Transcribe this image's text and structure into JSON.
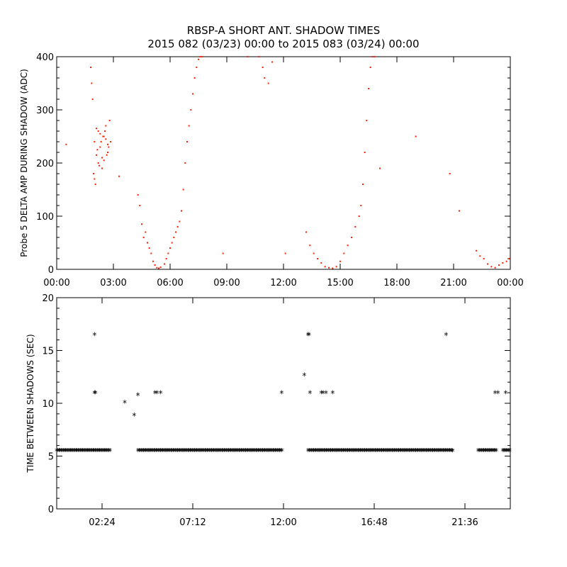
{
  "title_line1": "RBSP-A SHORT ANT. SHADOW TIMES",
  "title_line2": "2015 082 (03/23) 00:00 to 2015 083 (03/24) 00:00",
  "colors": {
    "top_points": "#ff2200",
    "bottom_points": "#000000"
  },
  "chart_data": [
    {
      "type": "scatter",
      "ylabel": "Probe 5 DELTA AMP DURING SHADOW (ADC)",
      "xlim": [
        0,
        24
      ],
      "ylim": [
        0,
        400
      ],
      "x_tick_values": [
        0,
        3,
        6,
        9,
        12,
        15,
        18,
        21,
        24
      ],
      "x_tick_labels": [
        "00:00",
        "03:00",
        "06:00",
        "09:00",
        "12:00",
        "15:00",
        "18:00",
        "21:00",
        "00:00"
      ],
      "y_tick_values": [
        0,
        100,
        200,
        300,
        400
      ],
      "y_tick_labels": [
        "0",
        "100",
        "200",
        "300",
        "400"
      ],
      "series": [
        {
          "x": [
            0.5,
            1.8,
            1.85,
            1.9,
            2.0,
            2.1,
            2.2,
            2.3,
            2.4,
            2.5,
            2.6,
            2.7,
            2.8,
            2.0,
            2.2,
            2.4,
            2.6,
            2.1,
            2.3,
            2.5,
            2.7,
            1.95,
            2.15,
            2.35,
            2.55,
            2.75,
            2.05,
            2.25,
            2.45,
            2.65,
            2.85,
            3.3,
            4.3,
            4.4,
            4.5,
            4.6,
            4.7,
            4.8,
            4.9,
            5.0,
            5.1,
            5.2,
            5.3,
            5.4,
            5.5,
            5.7,
            5.8,
            5.9,
            6.0,
            6.1,
            6.2,
            6.3,
            6.4,
            6.5,
            6.6,
            6.7,
            6.8,
            6.9,
            7.0,
            7.1,
            7.2,
            7.3,
            7.4,
            7.5,
            7.6,
            7.7,
            8.8,
            10.1,
            10.7,
            10.9,
            11.0,
            11.2,
            11.4,
            12.1,
            13.2,
            13.4,
            13.6,
            13.8,
            14.0,
            14.2,
            14.4,
            14.6,
            14.8,
            15.0,
            15.2,
            15.4,
            15.6,
            15.8,
            16.0,
            16.1,
            16.2,
            16.3,
            16.4,
            16.5,
            16.6,
            16.7,
            16.8,
            17.1,
            19.0,
            20.8,
            21.3,
            22.2,
            22.4,
            22.6,
            22.8,
            23.0,
            23.2,
            23.4,
            23.6,
            23.8,
            23.95
          ],
          "y": [
            235,
            380,
            350,
            320,
            240,
            215,
            260,
            230,
            190,
            250,
            270,
            220,
            280,
            170,
            200,
            210,
            245,
            265,
            255,
            205,
            235,
            180,
            225,
            240,
            260,
            230,
            160,
            195,
            250,
            215,
            240,
            175,
            140,
            120,
            85,
            60,
            70,
            50,
            40,
            30,
            15,
            8,
            3,
            2,
            4,
            10,
            20,
            30,
            40,
            50,
            60,
            70,
            80,
            90,
            110,
            150,
            200,
            240,
            270,
            300,
            330,
            360,
            380,
            395,
            400,
            400,
            30,
            400,
            400,
            380,
            360,
            350,
            390,
            30,
            70,
            45,
            30,
            20,
            12,
            5,
            3,
            2,
            5,
            15,
            30,
            45,
            60,
            80,
            100,
            120,
            160,
            220,
            280,
            340,
            380,
            400,
            400,
            190,
            250,
            180,
            110,
            35,
            25,
            20,
            10,
            5,
            3,
            8,
            12,
            15,
            20
          ]
        }
      ]
    },
    {
      "type": "scatter",
      "ylabel": "TIME BETWEEN SHADOWS (SEC)",
      "xlim": [
        0,
        24
      ],
      "ylim": [
        0,
        20
      ],
      "x_tick_values": [
        2.4,
        7.2,
        12,
        16.8,
        21.6
      ],
      "x_tick_labels": [
        "02:24",
        "07:12",
        "12:00",
        "16:48",
        "21:36"
      ],
      "y_tick_values": [
        0,
        5,
        10,
        15,
        20
      ],
      "y_tick_labels": [
        "0",
        "5",
        "10",
        "15",
        "20"
      ],
      "baseline_segments": [
        [
          0,
          2.85,
          5.45
        ],
        [
          4.3,
          11.95,
          5.45
        ],
        [
          13.3,
          20.95,
          5.45
        ],
        [
          22.3,
          23.3,
          5.45
        ],
        [
          23.6,
          24,
          5.45
        ]
      ],
      "series": [
        {
          "x": [
            2.0,
            2.0,
            2.05,
            3.6,
            4.1,
            4.3,
            5.2,
            5.3,
            5.5,
            11.9,
            13.1,
            13.3,
            13.35,
            13.4,
            14.0,
            14.1,
            14.25,
            14.6,
            20.6,
            20.95,
            23.2,
            23.35,
            23.75
          ],
          "y": [
            16.4,
            10.9,
            10.9,
            10,
            8.8,
            10.7,
            10.9,
            10.9,
            10.9,
            10.9,
            12.6,
            16.4,
            16.4,
            10.9,
            10.9,
            10.9,
            10.9,
            10.9,
            16.4,
            5.4,
            10.9,
            10.9,
            10.9
          ]
        }
      ]
    }
  ]
}
